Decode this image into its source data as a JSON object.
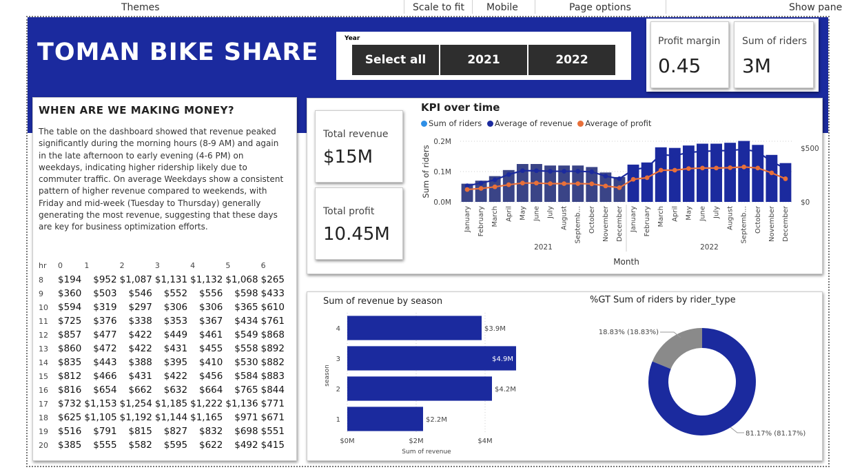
{
  "toolbar": {
    "items": [
      "Themes",
      "Scale to fit",
      "Mobile",
      "Page options",
      "Show pane"
    ]
  },
  "header": {
    "title": "TOMAN BIKE SHARE"
  },
  "slicer": {
    "label": "Year",
    "options": [
      "Select all",
      "2021",
      "2022"
    ]
  },
  "kpis": {
    "profit_margin": {
      "label": "Profit margin",
      "value": "0.45"
    },
    "sum_riders": {
      "label": "Sum of riders",
      "value": "3M"
    },
    "total_revenue": {
      "label": "Total revenue",
      "value": "$15M"
    },
    "total_profit": {
      "label": "Total profit",
      "value": "10.45M"
    }
  },
  "insight": {
    "title": "WHEN ARE WE MAKING MONEY?",
    "text": "The table on the dashboard showed that revenue peaked significantly during the morning hours (8-9 AM) and again in the late afternoon to early evening (4-6 PM) on weekdays, indicating higher ridership likely due to commuter traffic. On average Weekdays show a consistent pattern of higher revenue compared to weekends, with Friday and mid-week (Tuesday to Thursday) generally generating the most revenue, suggesting that these days are key for business optimization efforts."
  },
  "hour_table": {
    "headers": [
      "hr",
      "0",
      "1",
      "2",
      "3",
      "4",
      "5",
      "6"
    ],
    "rows": [
      [
        "8",
        "$194",
        "$952",
        "$1,087",
        "$1,131",
        "$1,132",
        "$1,068",
        "$265"
      ],
      [
        "9",
        "$360",
        "$503",
        "$546",
        "$552",
        "$556",
        "$598",
        "$433"
      ],
      [
        "10",
        "$594",
        "$319",
        "$297",
        "$306",
        "$306",
        "$365",
        "$610"
      ],
      [
        "11",
        "$725",
        "$376",
        "$338",
        "$353",
        "$367",
        "$434",
        "$761"
      ],
      [
        "12",
        "$857",
        "$477",
        "$422",
        "$449",
        "$461",
        "$549",
        "$868"
      ],
      [
        "13",
        "$860",
        "$472",
        "$422",
        "$431",
        "$455",
        "$558",
        "$892"
      ],
      [
        "14",
        "$835",
        "$443",
        "$388",
        "$395",
        "$410",
        "$530",
        "$882"
      ],
      [
        "15",
        "$812",
        "$466",
        "$431",
        "$422",
        "$456",
        "$584",
        "$883"
      ],
      [
        "16",
        "$816",
        "$654",
        "$662",
        "$632",
        "$664",
        "$765",
        "$844"
      ],
      [
        "17",
        "$732",
        "$1,153",
        "$1,254",
        "$1,185",
        "$1,222",
        "$1,136",
        "$771"
      ],
      [
        "18",
        "$625",
        "$1,105",
        "$1,192",
        "$1,144",
        "$1,165",
        "$971",
        "$671"
      ],
      [
        "19",
        "$516",
        "$791",
        "$815",
        "$827",
        "$832",
        "$698",
        "$551"
      ],
      [
        "20",
        "$385",
        "$555",
        "$582",
        "$595",
        "$622",
        "$492",
        "$415"
      ]
    ]
  },
  "colors": {
    "brand": "#1b2a9e",
    "bar_2021": "#3a4487",
    "bar_2022": "#1b2a9e",
    "revenue_line": "#1b2a9e",
    "profit_line": "#e8703a",
    "riders_legend": "#2e8fe6",
    "donut_other": "#8a8a8a"
  },
  "chart_data": [
    {
      "type": "bar",
      "title": "KPI over time",
      "legend": [
        "Sum of riders",
        "Average of revenue",
        "Average of profit"
      ],
      "legend_position": "top-left",
      "xlabel": "Month",
      "ylabel": "Sum of riders",
      "ylim": [
        0,
        200000
      ],
      "y_ticks": [
        "0.0M",
        "0.1M",
        "0.2M"
      ],
      "y2_ticks": [
        "$0",
        "$500"
      ],
      "y2lim": [
        0,
        500
      ],
      "groups": [
        "2021",
        "2022"
      ],
      "categories": [
        "January",
        "February",
        "March",
        "April",
        "May",
        "June",
        "July",
        "August",
        "Septemb...",
        "October",
        "November",
        "December",
        "January",
        "February",
        "March",
        "April",
        "May",
        "June",
        "July",
        "August",
        "Septemb...",
        "October",
        "November",
        "December"
      ],
      "series": [
        {
          "name": "Sum of riders",
          "values": [
            60000,
            70000,
            85000,
            105000,
            125000,
            125000,
            120000,
            120000,
            120000,
            115000,
            97000,
            82000,
            123000,
            130000,
            180000,
            178000,
            186000,
            192000,
            192000,
            195000,
            201000,
            188000,
            155000,
            128000
          ]
        },
        {
          "name": "Average of revenue",
          "values": [
            150,
            175,
            205,
            255,
            290,
            290,
            285,
            285,
            285,
            280,
            240,
            215,
            300,
            320,
            440,
            430,
            460,
            470,
            475,
            478,
            490,
            465,
            375,
            310
          ]
        },
        {
          "name": "Average of profit",
          "values": [
            115,
            125,
            140,
            160,
            175,
            175,
            170,
            170,
            170,
            168,
            148,
            132,
            210,
            225,
            295,
            295,
            310,
            315,
            315,
            318,
            325,
            315,
            270,
            215
          ]
        }
      ]
    },
    {
      "type": "bar",
      "title": "Sum of revenue by season",
      "orientation": "horizontal",
      "xlabel": "Sum of revenue",
      "ylabel": "season",
      "xlim": [
        0,
        5000000
      ],
      "x_ticks": [
        "$0M",
        "$2M",
        "$4M"
      ],
      "categories": [
        "4",
        "3",
        "2",
        "1"
      ],
      "values": [
        3900000,
        4900000,
        4200000,
        2200000
      ],
      "labels": [
        "$3.9M",
        "$4.9M",
        "$4.2M",
        "$2.2M"
      ]
    },
    {
      "type": "pie",
      "title": "%GT Sum of riders by rider_type",
      "donut": true,
      "values": [
        81.17,
        18.83
      ],
      "labels": [
        "81.17% (81.17%)",
        "18.83% (18.83%)"
      ]
    }
  ]
}
